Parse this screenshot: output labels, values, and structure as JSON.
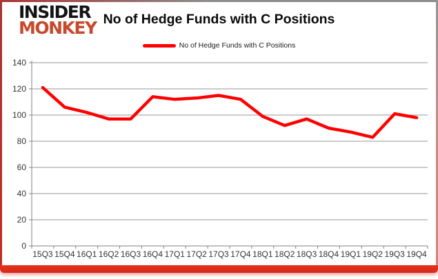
{
  "header": {
    "logo": {
      "line1": "INSIDER",
      "line2": "MONKEY"
    },
    "title": "No of Hedge Funds with C Positions"
  },
  "legend": {
    "items": [
      {
        "label": "No of Hedge Funds with C Positions",
        "color": "#ff0000"
      }
    ]
  },
  "colors": {
    "line": "#ff0000",
    "logo_black": "#141414",
    "logo_accent": "#c6492c",
    "frame_red": "#c8271b",
    "gridline": "#969696",
    "axis": "#808080",
    "axis_text": "#333333"
  },
  "chart_data": {
    "type": "line",
    "title": "No of Hedge Funds with C Positions",
    "categories": [
      "15Q3",
      "15Q4",
      "16Q1",
      "16Q2",
      "16Q3",
      "16Q4",
      "17Q1",
      "17Q2",
      "17Q3",
      "17Q4",
      "18Q1",
      "18Q2",
      "18Q3",
      "18Q4",
      "19Q1",
      "19Q2",
      "19Q3",
      "19Q4"
    ],
    "series": [
      {
        "name": "No of Hedge Funds with C Positions",
        "color": "#ff0000",
        "values": [
          121,
          106,
          102,
          97,
          97,
          114,
          112,
          113,
          115,
          112,
          99,
          92,
          97,
          90,
          87,
          83,
          101,
          98
        ]
      }
    ],
    "xlabel": "",
    "ylabel": "",
    "ylim": [
      0,
      140
    ],
    "ytick_step": 20,
    "grid": true,
    "legend_position": "top"
  }
}
